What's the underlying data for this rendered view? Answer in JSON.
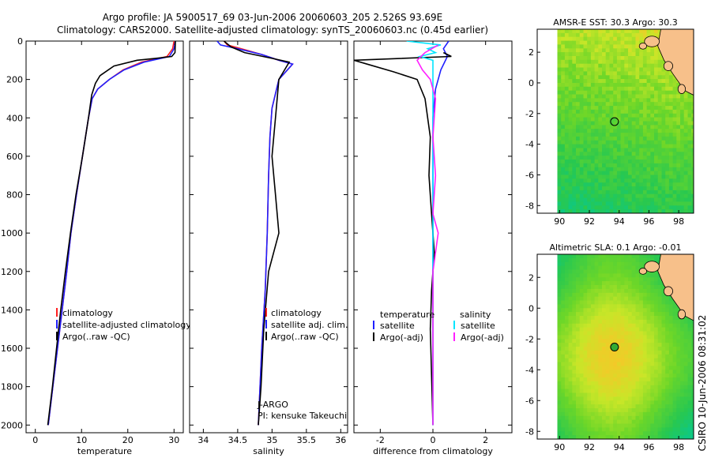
{
  "header": {
    "title_line1": "Argo profile: JA 5900517_69 03-Jun-2006 20060603_205 2.526S 93.69E",
    "title_line2": "Climatology: CARS2000. Satellite-adjusted climatology: synTS_20060603.nc (0.45d earlier)"
  },
  "colors": {
    "climatology": "#ff2020",
    "satellite": "#2020ff",
    "argo": "#000000",
    "satellite_salinity": "#00e5ff",
    "argo_adj_salinity": "#ff20ff",
    "land": "#f7c08a"
  },
  "chart_data": [
    {
      "type": "line",
      "id": "temperature",
      "xlabel": "temperature",
      "xlim": [
        -2,
        32
      ],
      "ylim": [
        2040,
        0
      ],
      "x_ticks": [
        0,
        10,
        20,
        30
      ],
      "y_ticks": [
        0,
        200,
        400,
        600,
        800,
        1000,
        1200,
        1400,
        1600,
        1800,
        2000
      ],
      "legend": [
        "climatology",
        "satellite-adjusted climatology",
        "Argo(..raw -QC)"
      ],
      "series": [
        {
          "name": "climatology",
          "color": "#ff2020",
          "points": [
            [
              30.0,
              0
            ],
            [
              29.7,
              40
            ],
            [
              28.5,
              80
            ],
            [
              23,
              110
            ],
            [
              19,
              150
            ],
            [
              16,
              200
            ],
            [
              13.5,
              250
            ],
            [
              12.3,
              300
            ],
            [
              11.5,
              400
            ],
            [
              10.2,
              600
            ],
            [
              8.9,
              800
            ],
            [
              7.7,
              1000
            ],
            [
              6.8,
              1200
            ],
            [
              5.8,
              1400
            ],
            [
              4.8,
              1600
            ],
            [
              3.8,
              1800
            ],
            [
              2.8,
              2000
            ]
          ]
        },
        {
          "name": "satellite-adjusted climatology",
          "color": "#2020ff",
          "points": [
            [
              30.3,
              0
            ],
            [
              30.0,
              40
            ],
            [
              29,
              80
            ],
            [
              23.5,
              110
            ],
            [
              19.2,
              150
            ],
            [
              16,
              200
            ],
            [
              13.5,
              250
            ],
            [
              12.3,
              300
            ],
            [
              11.5,
              400
            ],
            [
              10.2,
              600
            ],
            [
              8.9,
              800
            ],
            [
              7.7,
              1000
            ],
            [
              6.8,
              1200
            ],
            [
              5.8,
              1400
            ],
            [
              4.8,
              1600
            ],
            [
              3.8,
              1800
            ],
            [
              2.8,
              2000
            ]
          ]
        },
        {
          "name": "Argo(..raw -QC)",
          "color": "#000000",
          "points": [
            [
              30.3,
              0
            ],
            [
              30.2,
              60
            ],
            [
              29.5,
              80
            ],
            [
              26,
              90
            ],
            [
              22,
              100
            ],
            [
              17,
              130
            ],
            [
              14,
              180
            ],
            [
              13,
              220
            ],
            [
              12.2,
              280
            ],
            [
              11.5,
              400
            ],
            [
              10.2,
              600
            ],
            [
              8.8,
              800
            ],
            [
              7.6,
              1000
            ],
            [
              6.5,
              1200
            ],
            [
              5.5,
              1400
            ],
            [
              4.6,
              1600
            ],
            [
              3.7,
              1800
            ],
            [
              2.7,
              2000
            ]
          ]
        }
      ]
    },
    {
      "type": "line",
      "id": "salinity",
      "xlabel": "salinity",
      "xlim": [
        33.8,
        36.1
      ],
      "ylim": [
        2040,
        0
      ],
      "x_ticks": [
        34,
        34.5,
        35,
        35.5,
        36
      ],
      "legend": [
        "climatology",
        "satellite adj. clim.",
        "Argo(..raw -QC)"
      ],
      "annotations": [
        "J-ARGO",
        "PI: kensuke Takeuchi"
      ],
      "series": [
        {
          "name": "climatology",
          "color": "#ff2020",
          "points": [
            [
              34.3,
              0
            ],
            [
              34.35,
              20
            ],
            [
              34.55,
              40
            ],
            [
              34.85,
              70
            ],
            [
              35.1,
              100
            ],
            [
              35.3,
              120
            ],
            [
              35.1,
              200
            ],
            [
              35.0,
              350
            ],
            [
              34.97,
              500
            ],
            [
              34.95,
              700
            ],
            [
              34.93,
              1000
            ],
            [
              34.9,
              1300
            ],
            [
              34.85,
              1600
            ],
            [
              34.8,
              2000
            ]
          ]
        },
        {
          "name": "satellite adj. clim.",
          "color": "#2020ff",
          "points": [
            [
              34.2,
              0
            ],
            [
              34.25,
              20
            ],
            [
              34.5,
              40
            ],
            [
              34.85,
              70
            ],
            [
              35.1,
              100
            ],
            [
              35.3,
              120
            ],
            [
              35.1,
              200
            ],
            [
              35.0,
              350
            ],
            [
              34.97,
              500
            ],
            [
              34.95,
              700
            ],
            [
              34.93,
              1000
            ],
            [
              34.9,
              1300
            ],
            [
              34.85,
              1600
            ],
            [
              34.8,
              2000
            ]
          ]
        },
        {
          "name": "Argo(..raw -QC)",
          "color": "#000000",
          "points": [
            [
              34.3,
              0
            ],
            [
              34.4,
              30
            ],
            [
              34.6,
              60
            ],
            [
              35.0,
              90
            ],
            [
              35.25,
              110
            ],
            [
              35.1,
              200
            ],
            [
              35.05,
              400
            ],
            [
              35.0,
              600
            ],
            [
              35.05,
              800
            ],
            [
              35.1,
              1000
            ],
            [
              34.95,
              1200
            ],
            [
              34.88,
              1500
            ],
            [
              34.84,
              1800
            ],
            [
              34.8,
              2000
            ]
          ]
        }
      ]
    },
    {
      "type": "line",
      "id": "difference",
      "xlabel": "difference from climatology",
      "xlim": [
        -3,
        3
      ],
      "ylim": [
        2040,
        0
      ],
      "x_ticks": [
        -2,
        0,
        2
      ],
      "legend_temperature_header": "temperature",
      "legend_salinity_header": "salinity",
      "legend": [
        "satellite",
        "Argo(-adj)",
        "satellite",
        "Argo(-adj)"
      ],
      "series": [
        {
          "name": "temperature satellite",
          "color": "#2020ff",
          "points": [
            [
              0.6,
              0
            ],
            [
              0.4,
              40
            ],
            [
              0.55,
              80
            ],
            [
              0.3,
              150
            ],
            [
              0.1,
              250
            ],
            [
              0,
              400
            ],
            [
              0,
              2000
            ]
          ]
        },
        {
          "name": "temperature Argo(-adj)",
          "color": "#000000",
          "points": [
            [
              0.4,
              60
            ],
            [
              0.7,
              80
            ],
            [
              -3,
              100
            ],
            [
              -2.5,
              120
            ],
            [
              -1.5,
              160
            ],
            [
              -0.6,
              200
            ],
            [
              -0.3,
              300
            ],
            [
              -0.1,
              500
            ],
            [
              -0.15,
              700
            ],
            [
              -0.05,
              900
            ],
            [
              0.05,
              1100
            ],
            [
              -0.05,
              1300
            ],
            [
              -0.1,
              1500
            ],
            [
              0,
              2000
            ]
          ]
        },
        {
          "name": "salinity satellite",
          "color": "#00e5ff",
          "points": [
            [
              -1.0,
              0
            ],
            [
              0.3,
              20
            ],
            [
              -0.2,
              40
            ],
            [
              0.1,
              60
            ],
            [
              -0.5,
              80
            ],
            [
              0,
              100
            ],
            [
              0,
              2000
            ]
          ]
        },
        {
          "name": "salinity Argo(-adj)",
          "color": "#ff20ff",
          "points": [
            [
              0.2,
              20
            ],
            [
              -0.3,
              60
            ],
            [
              -0.6,
              100
            ],
            [
              -0.4,
              150
            ],
            [
              -0.1,
              200
            ],
            [
              0.1,
              300
            ],
            [
              0,
              500
            ],
            [
              0.1,
              700
            ],
            [
              0,
              900
            ],
            [
              0.2,
              1000
            ],
            [
              0,
              1200
            ],
            [
              0,
              2000
            ]
          ]
        }
      ]
    },
    {
      "type": "heatmap",
      "id": "sst_map",
      "title": "AMSR-E SST: 30.3 Argo: 30.3",
      "xlim": [
        88.5,
        99
      ],
      "ylim": [
        -8.5,
        3.5
      ],
      "x_ticks": [
        90,
        92,
        94,
        96,
        98
      ],
      "y_ticks": [
        -8,
        -6,
        -4,
        -2,
        0,
        2
      ],
      "argo_position": [
        93.69,
        -2.526
      ]
    },
    {
      "type": "heatmap",
      "id": "sla_map",
      "title": "Altimetric SLA: 0.1 Argo: -0.01",
      "xlim": [
        88.5,
        99
      ],
      "ylim": [
        -8.5,
        3.5
      ],
      "x_ticks": [
        90,
        92,
        94,
        96,
        98
      ],
      "y_ticks": [
        -8,
        -6,
        -4,
        -2,
        0,
        2
      ],
      "argo_position": [
        93.69,
        -2.526
      ]
    }
  ],
  "credit": "CSIRO 10-Jun-2006 08:31:02"
}
